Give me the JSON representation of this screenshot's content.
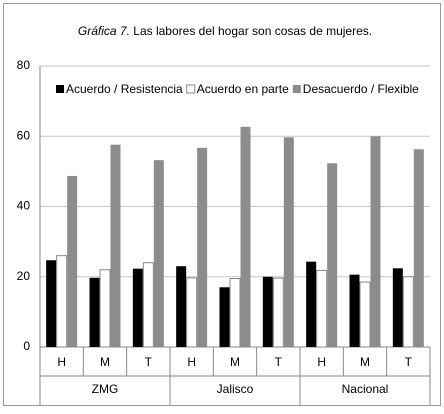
{
  "chart_data": {
    "type": "bar",
    "title": {
      "italic": "Gráfica 7.",
      "text": "Las labores del hogar son cosas de mujeres."
    },
    "groups": [
      "ZMG",
      "Jalisco",
      "Nacional"
    ],
    "categories": [
      "H",
      "M",
      "T",
      "H",
      "M",
      "T",
      "H",
      "M",
      "T"
    ],
    "series": [
      {
        "name": "Acuerdo / Resistencia",
        "color": "#000000",
        "values": [
          24.7,
          19.7,
          22.3,
          23,
          17,
          20,
          24.3,
          20.6,
          22.4
        ]
      },
      {
        "name": "Acuerdo en parte",
        "color": "#ffffff",
        "values": [
          26,
          22,
          24,
          19.7,
          19.5,
          19.6,
          21.8,
          18.5,
          20
        ]
      },
      {
        "name": "Desacuerdo / Flexible",
        "color": "#8c8c8c",
        "values": [
          48.7,
          57.6,
          53.2,
          56.7,
          62.7,
          59.7,
          52.3,
          60,
          56.3
        ]
      }
    ],
    "ylim": [
      0,
      80
    ],
    "yticks": [
      0,
      20,
      40,
      60,
      80
    ],
    "grid": true,
    "legend": "top"
  }
}
